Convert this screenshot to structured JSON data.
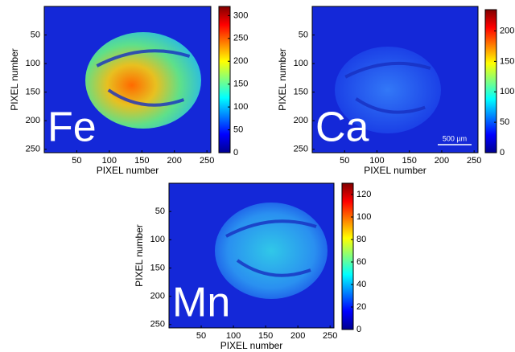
{
  "chart_data": [
    {
      "type": "image",
      "label": "Fe",
      "xlabel": "PIXEL number",
      "ylabel": "PIXEL number",
      "xlim": [
        0,
        256
      ],
      "xticks": [
        50,
        100,
        150,
        200,
        250
      ],
      "ylim": [
        0,
        256
      ],
      "yticks": [
        50,
        100,
        150,
        200,
        250
      ],
      "y_reversed": true,
      "colormap": "jet",
      "clim": [
        0,
        320
      ],
      "cticks": [
        0,
        50,
        100,
        150,
        200,
        250,
        300
      ]
    },
    {
      "type": "image",
      "label": "Ca",
      "xlabel": "PIXEL number",
      "ylabel": "PIXEL number",
      "xlim": [
        0,
        256
      ],
      "xticks": [
        50,
        100,
        150,
        200,
        250
      ],
      "ylim": [
        0,
        256
      ],
      "yticks": [
        50,
        100,
        150,
        200,
        250
      ],
      "y_reversed": true,
      "colormap": "jet",
      "clim": [
        0,
        235
      ],
      "cticks": [
        0,
        50,
        100,
        150,
        200
      ],
      "scale_bar": "500 µm"
    },
    {
      "type": "image",
      "label": "Mn",
      "xlabel": "PIXEL number",
      "ylabel": "PIXEL number",
      "xlim": [
        0,
        256
      ],
      "xticks": [
        50,
        100,
        150,
        200,
        250
      ],
      "ylim": [
        0,
        256
      ],
      "yticks": [
        50,
        100,
        150,
        200,
        250
      ],
      "y_reversed": true,
      "colormap": "jet",
      "clim": [
        0,
        130
      ],
      "cticks": [
        0,
        20,
        40,
        60,
        80,
        100,
        120
      ]
    }
  ]
}
